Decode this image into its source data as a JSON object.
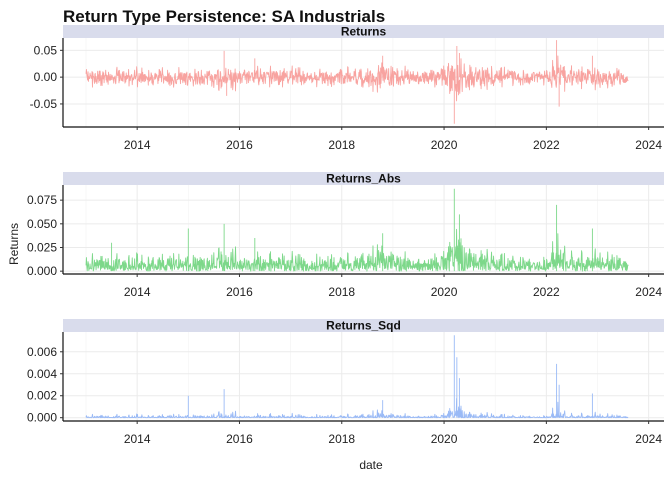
{
  "chart_data": {
    "type": "line",
    "title": "Return Type Persistence: SA Industrials",
    "xlabel": "date",
    "ylabel": "Returns",
    "x_ticks": [
      "2014",
      "2016",
      "2018",
      "2020",
      "2022",
      "2024"
    ],
    "x_range": [
      2012.55,
      2024.3
    ],
    "data_start": 2013.0,
    "data_end": 2023.6,
    "facets": [
      {
        "strip": "Returns",
        "color": "#F8A3A0",
        "ylim": [
          -0.093,
          0.073
        ],
        "y_ticks": [
          -0.05,
          0.0,
          0.05
        ],
        "y_tick_labels": [
          "-0.05",
          "0.00",
          "0.05"
        ],
        "spikes": [
          [
            2015.7,
            0.049
          ],
          [
            2016.3,
            0.035
          ],
          [
            2018.8,
            0.04
          ],
          [
            2020.2,
            -0.087
          ],
          [
            2020.25,
            0.058
          ],
          [
            2020.3,
            0.045
          ],
          [
            2022.2,
            0.069
          ],
          [
            2022.25,
            -0.055
          ],
          [
            2015.75,
            -0.035
          ],
          [
            2022.9,
            0.04
          ]
        ]
      },
      {
        "strip": "Returns_Abs",
        "color": "#7DD88A",
        "ylim": [
          -0.003,
          0.091
        ],
        "y_ticks": [
          0.0,
          0.025,
          0.05,
          0.075
        ],
        "y_tick_labels": [
          "0.000",
          "0.025",
          "0.050",
          "0.075"
        ],
        "spikes": [
          [
            2015.7,
            0.05
          ],
          [
            2015.0,
            0.045
          ],
          [
            2018.8,
            0.04
          ],
          [
            2020.2,
            0.087
          ],
          [
            2020.3,
            0.06
          ],
          [
            2022.2,
            0.07
          ],
          [
            2022.9,
            0.045
          ],
          [
            2016.3,
            0.035
          ],
          [
            2013.5,
            0.03
          ]
        ]
      },
      {
        "strip": "Returns_Sqd",
        "color": "#9ABAF6",
        "ylim": [
          -0.0003,
          0.0078
        ],
        "y_ticks": [
          0.0,
          0.002,
          0.004,
          0.006
        ],
        "y_tick_labels": [
          "0.000",
          "0.002",
          "0.004",
          "0.006"
        ],
        "spikes": [
          [
            2015.7,
            0.0026
          ],
          [
            2015.0,
            0.002
          ],
          [
            2018.8,
            0.0016
          ],
          [
            2020.2,
            0.0075
          ],
          [
            2020.3,
            0.0036
          ],
          [
            2022.2,
            0.0049
          ],
          [
            2022.9,
            0.0022
          ],
          [
            2020.25,
            0.0055
          ],
          [
            2022.25,
            0.003
          ]
        ]
      }
    ],
    "grid": true,
    "legend": "none"
  }
}
